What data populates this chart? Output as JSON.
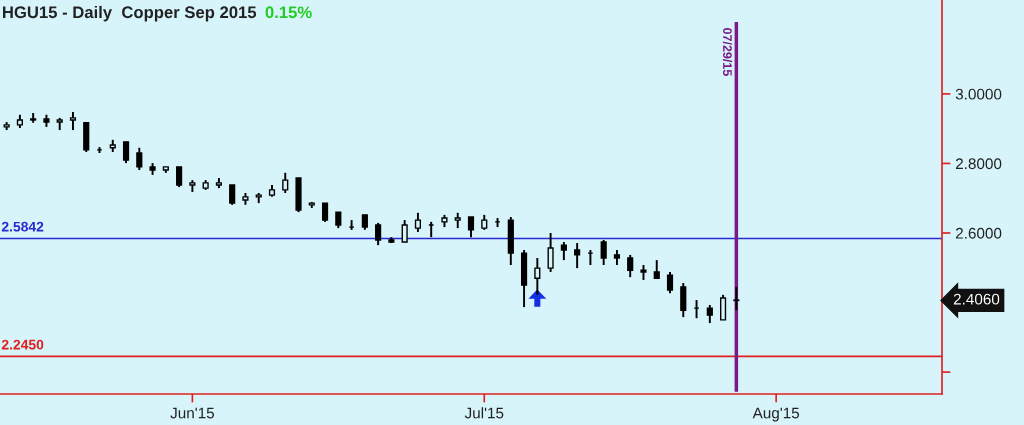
{
  "chart_data": {
    "type": "candlestick",
    "title": "HGU15 - Daily  Copper Sep 2015",
    "categories": [
      null,
      null,
      null,
      null,
      null,
      null,
      null,
      null,
      null,
      null,
      null,
      null,
      null,
      null,
      "Jun'15",
      null,
      null,
      null,
      null,
      null,
      null,
      null,
      null,
      null,
      null,
      null,
      null,
      null,
      null,
      null,
      null,
      null,
      null,
      null,
      null,
      null,
      "Jul'15",
      null,
      null,
      null,
      null,
      null,
      null,
      null,
      null,
      null,
      null,
      null,
      null,
      null,
      null,
      null,
      null,
      null,
      null,
      null,
      null,
      null,
      "Aug'15",
      null,
      null,
      null,
      null,
      null,
      null,
      null,
      null,
      null,
      null,
      null,
      null
    ],
    "ohlc": [
      [
        2.905,
        2.919,
        2.896,
        2.911
      ],
      [
        2.911,
        2.94,
        2.902,
        2.925
      ],
      [
        2.925,
        2.945,
        2.917,
        2.928
      ],
      [
        2.928,
        2.94,
        2.905,
        2.919
      ],
      [
        2.919,
        2.931,
        2.896,
        2.925
      ],
      [
        2.925,
        2.948,
        2.896,
        2.931
      ],
      [
        2.917,
        2.917,
        2.833,
        2.839
      ],
      [
        2.839,
        2.847,
        2.83,
        2.839
      ],
      [
        2.845,
        2.868,
        2.833,
        2.853
      ],
      [
        2.862,
        2.862,
        2.801,
        2.81
      ],
      [
        2.83,
        2.845,
        2.781,
        2.79
      ],
      [
        2.79,
        2.801,
        2.767,
        2.781
      ],
      [
        2.781,
        2.79,
        2.773,
        2.79
      ],
      [
        2.79,
        2.79,
        2.732,
        2.738
      ],
      [
        2.738,
        2.752,
        2.718,
        2.744
      ],
      [
        2.729,
        2.752,
        2.724,
        2.744
      ],
      [
        2.738,
        2.758,
        2.729,
        2.744
      ],
      [
        2.738,
        2.738,
        2.681,
        2.686
      ],
      [
        2.695,
        2.715,
        2.681,
        2.704
      ],
      [
        2.704,
        2.715,
        2.686,
        2.709
      ],
      [
        2.709,
        2.738,
        2.704,
        2.724
      ],
      [
        2.724,
        2.773,
        2.715,
        2.752
      ],
      [
        2.758,
        2.758,
        2.66,
        2.666
      ],
      [
        2.681,
        2.689,
        2.672,
        2.686
      ],
      [
        2.686,
        2.686,
        2.632,
        2.637
      ],
      [
        2.66,
        2.66,
        2.614,
        2.623
      ],
      [
        2.617,
        2.637,
        2.609,
        2.617
      ],
      [
        2.652,
        2.652,
        2.609,
        2.617
      ],
      [
        2.623,
        2.629,
        2.565,
        2.58
      ],
      [
        2.58,
        2.588,
        2.571,
        2.574
      ],
      [
        2.574,
        2.637,
        2.574,
        2.623
      ],
      [
        2.614,
        2.658,
        2.603,
        2.637
      ],
      [
        2.623,
        2.632,
        2.588,
        2.623
      ],
      [
        2.632,
        2.652,
        2.617,
        2.643
      ],
      [
        2.637,
        2.658,
        2.614,
        2.643
      ],
      [
        2.646,
        2.646,
        2.588,
        2.609
      ],
      [
        2.614,
        2.652,
        2.609,
        2.637
      ],
      [
        2.632,
        2.643,
        2.617,
        2.632
      ],
      [
        2.637,
        2.646,
        2.508,
        2.542
      ],
      [
        2.542,
        2.551,
        2.387,
        2.45
      ],
      [
        2.47,
        2.528,
        2.422,
        2.499
      ],
      [
        2.499,
        2.6,
        2.488,
        2.557
      ],
      [
        2.565,
        2.574,
        2.522,
        2.551
      ],
      [
        2.551,
        2.571,
        2.499,
        2.537
      ],
      [
        2.542,
        2.551,
        2.508,
        2.542
      ],
      [
        2.574,
        2.58,
        2.508,
        2.528
      ],
      [
        2.537,
        2.551,
        2.508,
        2.528
      ],
      [
        2.528,
        2.537,
        2.473,
        2.493
      ],
      [
        2.493,
        2.508,
        2.465,
        2.488
      ],
      [
        2.488,
        2.522,
        2.47,
        2.47
      ],
      [
        2.479,
        2.488,
        2.427,
        2.436
      ],
      [
        2.445,
        2.456,
        2.358,
        2.378
      ],
      [
        2.384,
        2.407,
        2.355,
        2.384
      ],
      [
        2.384,
        2.393,
        2.341,
        2.364
      ],
      [
        2.35,
        2.422,
        2.35,
        2.413
      ],
      [
        2.407,
        2.445,
        2.378,
        2.406
      ],
      null,
      null,
      null,
      null,
      null,
      null,
      null,
      null,
      null,
      null,
      null,
      null,
      null,
      null,
      null
    ],
    "color": "#000000",
    "ylim": [
      2.137,
      3.27
    ],
    "yticks": [
      {
        "value": 2.2,
        "label": null
      },
      {
        "value": 2.6,
        "label": "2.6000"
      },
      {
        "value": 2.8,
        "label": "2.8000"
      },
      {
        "value": 3.0,
        "label": "3.0000"
      }
    ],
    "ref_lines": [
      {
        "axis": "y",
        "value": 2.5842,
        "label": "2.5842",
        "color": "#2a2ad0"
      },
      {
        "axis": "y",
        "value": 2.245,
        "label": "2.2450",
        "color": "#e02020"
      }
    ],
    "annotations": [
      "0.15%",
      "07/29/15",
      "2.4060"
    ],
    "grid": false
  }
}
